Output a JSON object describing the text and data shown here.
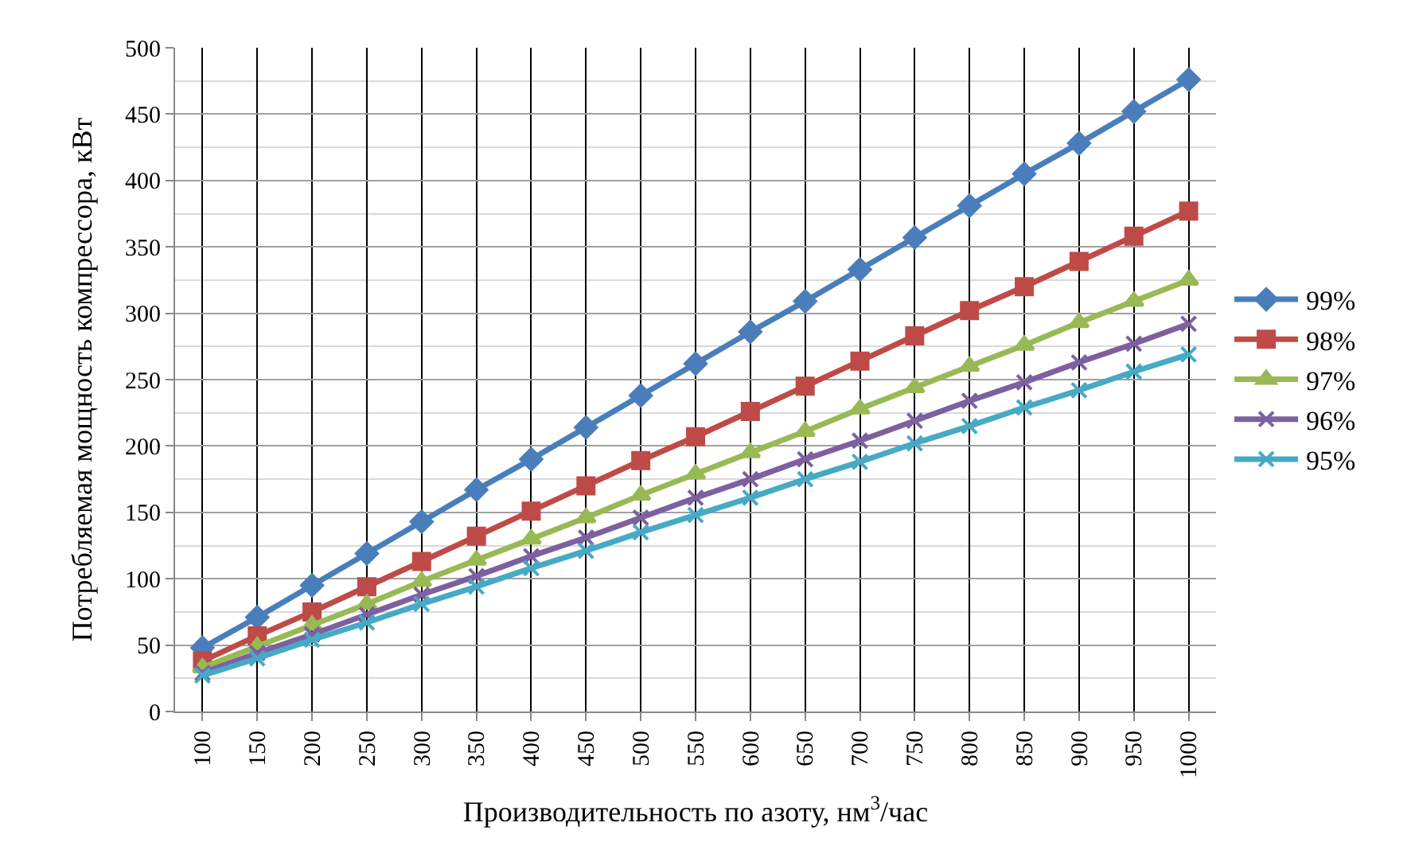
{
  "chart_data": {
    "type": "line",
    "xlabel": "Производительность по азоту, нм$^{3}$/час",
    "ylabel": "Потребляемая мощность компрессора, кВт",
    "categories": [
      "100",
      "150",
      "200",
      "250",
      "300",
      "350",
      "400",
      "450",
      "500",
      "550",
      "600",
      "650",
      "700",
      "750",
      "800",
      "850",
      "900",
      "950",
      "1000"
    ],
    "ylim": [
      0,
      500
    ],
    "yticks": [
      0,
      50,
      100,
      150,
      200,
      250,
      300,
      350,
      400,
      450,
      500
    ],
    "grid": true,
    "legend": "right",
    "line_style": "solid",
    "series": [
      {
        "name": "99%",
        "color": "#4a7ebb",
        "marker": "diamond",
        "values": [
          48,
          71,
          95,
          119,
          143,
          167,
          190,
          214,
          238,
          262,
          286,
          309,
          333,
          357,
          381,
          405,
          428,
          452,
          476
        ]
      },
      {
        "name": "98%",
        "color": "#be4b48",
        "marker": "square",
        "values": [
          38,
          57,
          75,
          94,
          113,
          132,
          151,
          170,
          189,
          207,
          226,
          245,
          264,
          283,
          302,
          320,
          339,
          358,
          377
        ]
      },
      {
        "name": "97%",
        "color": "#98b954",
        "marker": "triangle",
        "values": [
          33,
          49,
          65,
          81,
          98,
          114,
          130,
          146,
          163,
          179,
          195,
          211,
          228,
          244,
          260,
          276,
          293,
          309,
          325
        ]
      },
      {
        "name": "96%",
        "color": "#7d60a0",
        "marker": "cross",
        "values": [
          29,
          44,
          58,
          73,
          88,
          102,
          117,
          131,
          146,
          161,
          175,
          190,
          204,
          219,
          234,
          248,
          263,
          277,
          292
        ]
      },
      {
        "name": "95%",
        "color": "#46aac5",
        "marker": "cross",
        "values": [
          27,
          40,
          54,
          67,
          81,
          94,
          108,
          121,
          135,
          148,
          161,
          175,
          188,
          202,
          215,
          229,
          242,
          256,
          269
        ]
      }
    ]
  }
}
